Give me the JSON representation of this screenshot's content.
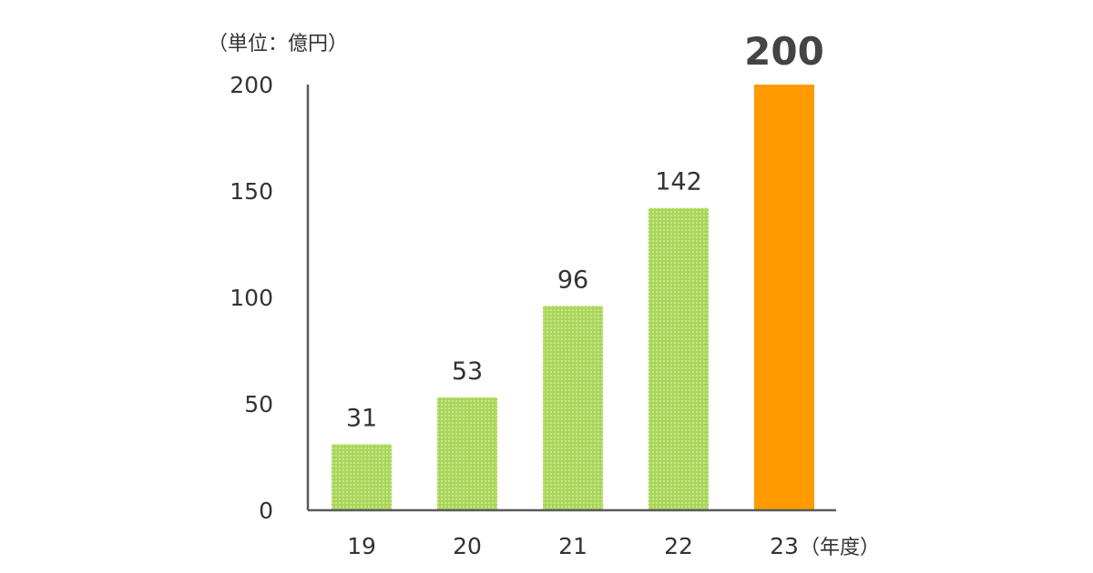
{
  "chart_data": {
    "type": "bar",
    "ylabel": "（単位：億円）",
    "xlabel": "（年度）",
    "categories": [
      "19",
      "20",
      "21",
      "22",
      "23"
    ],
    "values": [
      31,
      53,
      96,
      142,
      200
    ],
    "ylim": [
      0,
      200
    ],
    "yticks": [
      0,
      50,
      100,
      150,
      200
    ],
    "grid": false,
    "legend": "none",
    "colors": {
      "bar": "#a9d65a",
      "bar_pattern_dot": "#c7e68f",
      "highlight": "#ff9a00",
      "axis": "#5a5a5a"
    },
    "highlight_index": 4
  }
}
